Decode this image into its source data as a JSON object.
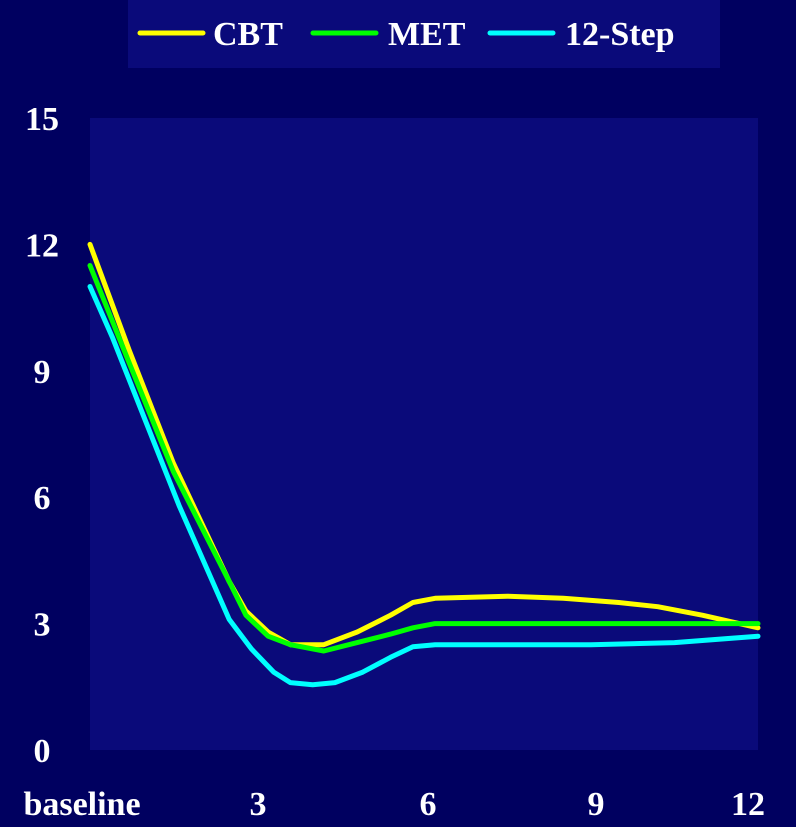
{
  "chart_data": {
    "type": "line",
    "title": "",
    "xlabel": "",
    "ylabel": "",
    "x_tick_labels": [
      "baseline",
      "3",
      "6",
      "9",
      "12"
    ],
    "x_tick_values": [
      0,
      3,
      6,
      9,
      12
    ],
    "y_ticks": [
      0,
      3,
      6,
      9,
      12,
      15
    ],
    "ylim": [
      0,
      15
    ],
    "xlim": [
      0,
      12
    ],
    "grid": false,
    "legend_position": "top",
    "background_color": "#000060",
    "plot_background_color": "#0a0a7a",
    "series": [
      {
        "name": "CBT",
        "color": "#ffff00",
        "points": [
          [
            0,
            12
          ],
          [
            0.7,
            9.5
          ],
          [
            1.5,
            6.8
          ],
          [
            2.5,
            4.0
          ],
          [
            2.8,
            3.3
          ],
          [
            3.2,
            2.8
          ],
          [
            3.6,
            2.5
          ],
          [
            4.2,
            2.5
          ],
          [
            4.8,
            2.8
          ],
          [
            5.4,
            3.2
          ],
          [
            5.8,
            3.5
          ],
          [
            6.2,
            3.6
          ],
          [
            7.5,
            3.65
          ],
          [
            8.5,
            3.6
          ],
          [
            9.5,
            3.5
          ],
          [
            10.2,
            3.4
          ],
          [
            11,
            3.2
          ],
          [
            12,
            2.9
          ]
        ]
      },
      {
        "name": "MET",
        "color": "#00ff00",
        "points": [
          [
            0,
            11.5
          ],
          [
            0.7,
            9.2
          ],
          [
            1.5,
            6.6
          ],
          [
            2.5,
            4.0
          ],
          [
            2.8,
            3.2
          ],
          [
            3.2,
            2.7
          ],
          [
            3.6,
            2.5
          ],
          [
            4.2,
            2.35
          ],
          [
            4.8,
            2.55
          ],
          [
            5.4,
            2.75
          ],
          [
            5.8,
            2.9
          ],
          [
            6.2,
            3.0
          ],
          [
            7.5,
            3.0
          ],
          [
            9.0,
            3.0
          ],
          [
            10.5,
            3.0
          ],
          [
            12,
            3.0
          ]
        ]
      },
      {
        "name": "12-Step",
        "color": "#00ffff",
        "points": [
          [
            0,
            11.0
          ],
          [
            0.4,
            9.8
          ],
          [
            1.0,
            7.8
          ],
          [
            1.6,
            5.8
          ],
          [
            2.5,
            3.1
          ],
          [
            2.9,
            2.4
          ],
          [
            3.3,
            1.85
          ],
          [
            3.6,
            1.6
          ],
          [
            4.0,
            1.55
          ],
          [
            4.4,
            1.6
          ],
          [
            4.9,
            1.85
          ],
          [
            5.4,
            2.2
          ],
          [
            5.8,
            2.45
          ],
          [
            6.2,
            2.5
          ],
          [
            7.5,
            2.5
          ],
          [
            9.0,
            2.5
          ],
          [
            10.5,
            2.55
          ],
          [
            12,
            2.7
          ]
        ]
      }
    ]
  }
}
